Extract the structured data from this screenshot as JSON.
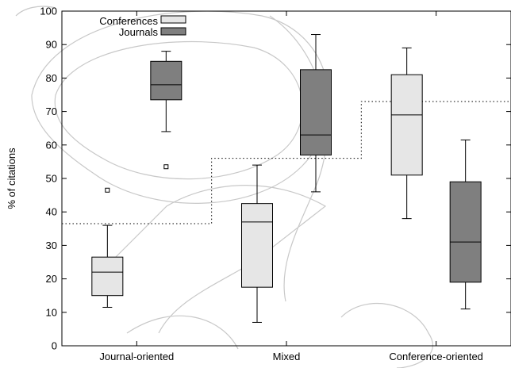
{
  "chart_data": {
    "type": "box",
    "ylabel": "% of citations",
    "ylim": [
      0,
      100
    ],
    "yticks": [
      0,
      10,
      20,
      30,
      40,
      50,
      60,
      70,
      80,
      90,
      100
    ],
    "categories": [
      "Journal-oriented",
      "Mixed",
      "Conference-oriented"
    ],
    "legend": {
      "placement": "top-left"
    },
    "series": [
      {
        "name": "Conferences",
        "color": "#e6e6e6",
        "boxes": [
          {
            "category": "Journal-oriented",
            "whisker_low": 11.5,
            "q1": 15,
            "median": 22,
            "q3": 26.5,
            "whisker_high": 36,
            "outliers": [
              46.5
            ]
          },
          {
            "category": "Mixed",
            "whisker_low": 7,
            "q1": 17.5,
            "median": 37,
            "q3": 42.5,
            "whisker_high": 54,
            "outliers": []
          },
          {
            "category": "Conference-oriented",
            "whisker_low": 38,
            "q1": 51,
            "median": 69,
            "q3": 81,
            "whisker_high": 89,
            "outliers": []
          }
        ]
      },
      {
        "name": "Journals",
        "color": "#7f7f7f",
        "boxes": [
          {
            "category": "Journal-oriented",
            "whisker_low": 64,
            "q1": 73.5,
            "median": 78,
            "q3": 85,
            "whisker_high": 88,
            "outliers": [
              53.5
            ]
          },
          {
            "category": "Mixed",
            "whisker_low": 46,
            "q1": 57,
            "median": 63,
            "q3": 82.5,
            "whisker_high": 93,
            "outliers": []
          },
          {
            "category": "Conference-oriented",
            "whisker_low": 11,
            "q1": 19,
            "median": 31,
            "q3": 49,
            "whisker_high": 61.5,
            "outliers": []
          }
        ]
      }
    ],
    "reference_line": {
      "style": "dotted",
      "steps": [
        {
          "category": "Journal-oriented",
          "value": 36.5
        },
        {
          "category": "Mixed",
          "value": 56
        },
        {
          "category": "Conference-oriented",
          "value": 73
        }
      ]
    }
  }
}
